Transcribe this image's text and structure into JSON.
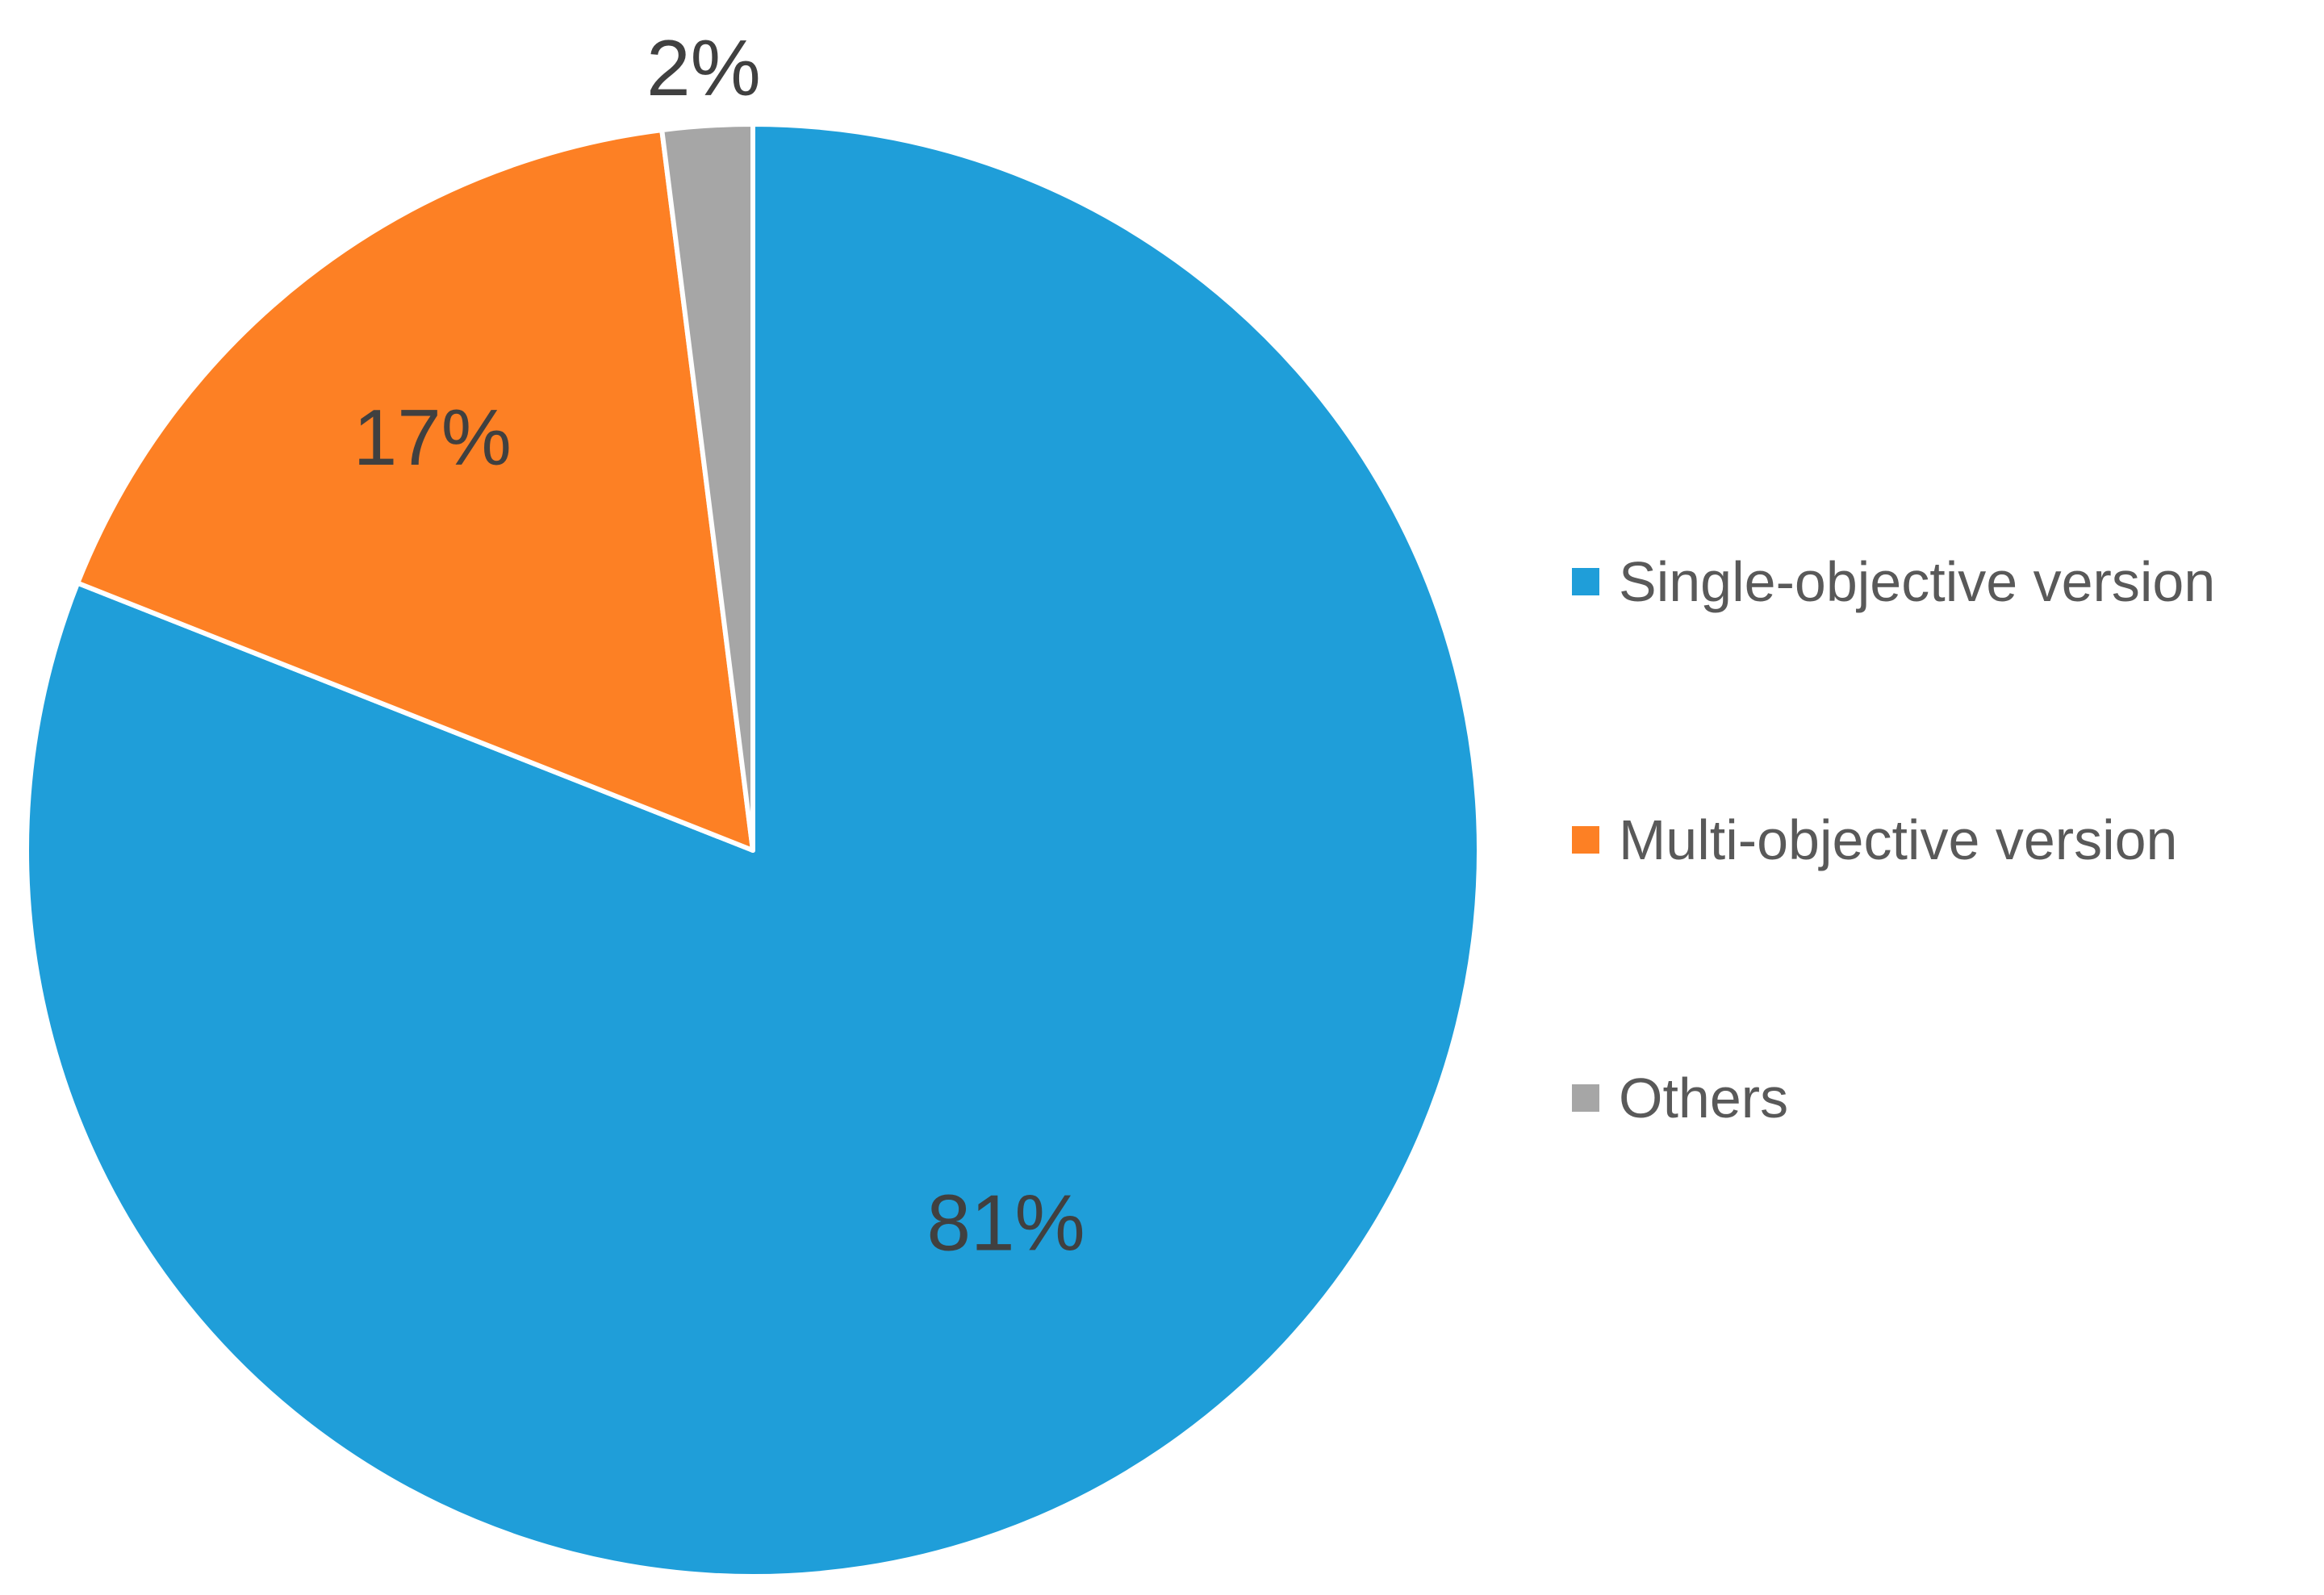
{
  "chart_data": {
    "type": "pie",
    "title": "",
    "slices": [
      {
        "name": "Single-objective version",
        "value": 81,
        "label": "81%",
        "color": "#1F9ED9"
      },
      {
        "name": "Multi-objective version",
        "value": 17,
        "label": "17%",
        "color": "#FD8024"
      },
      {
        "name": "Others",
        "value": 2,
        "label": "2%",
        "color": "#A6A6A6"
      }
    ],
    "start_angle": "12 o'clock",
    "direction": "clockwise",
    "legend": "right",
    "data_labels": true
  },
  "legend": {
    "items": [
      {
        "label": "Single-objective version",
        "color": "#1F9ED9"
      },
      {
        "label": "Multi-objective version",
        "color": "#FD8024"
      },
      {
        "label": "Others",
        "color": "#A6A6A6"
      }
    ]
  }
}
